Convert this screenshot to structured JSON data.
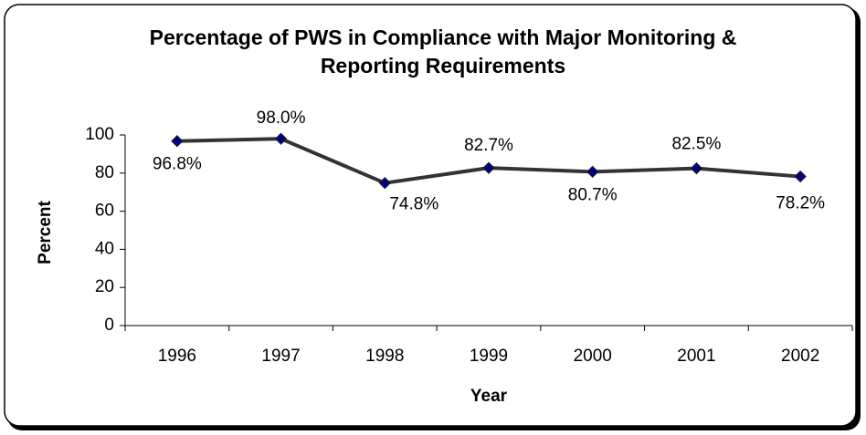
{
  "chart_data": {
    "type": "line",
    "title": "Percentage of PWS in Compliance with Major Monitoring & Reporting Requirements",
    "x_label": "Year",
    "y_label": "Percent",
    "categories": [
      "1996",
      "1997",
      "1998",
      "1999",
      "2000",
      "2001",
      "2002"
    ],
    "values": [
      96.8,
      98.0,
      74.8,
      82.7,
      80.7,
      82.5,
      78.2
    ],
    "value_labels": [
      "96.8%",
      "98.0%",
      "74.8%",
      "82.7%",
      "80.7%",
      "82.5%",
      "78.2%"
    ],
    "color": "#333333",
    "marker_color": "#000080",
    "ylim": [
      0,
      100
    ],
    "yticks": [
      0,
      20,
      40,
      60,
      80,
      100
    ],
    "grid": false
  }
}
